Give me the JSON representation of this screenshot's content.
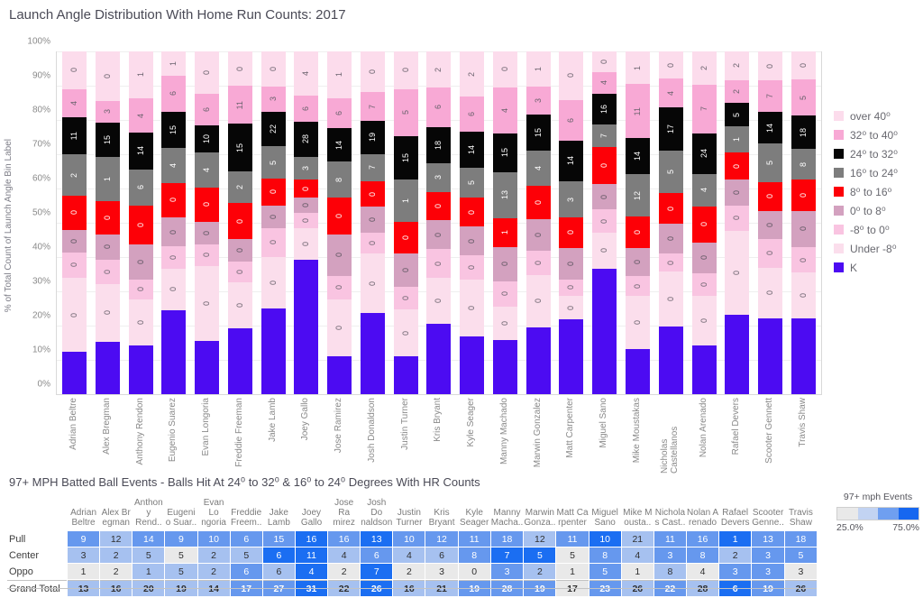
{
  "page_title": "Launch Angle Distribution With Home Run Counts:  2017",
  "chart_data": [
    {
      "type": "bar",
      "subtype": "stacked-100-percent",
      "title": "Launch Angle Distribution With Home Run Counts:  2017",
      "ylabel": "% of Total Count of Launch Angle Bin Label",
      "ylim": [
        0,
        100
      ],
      "ytick_step_percent": 10,
      "grid": true,
      "legend_position": "right",
      "segments_top_to_bottom": [
        "over 40⁰",
        "32⁰ to 40⁰",
        "24⁰ to 32⁰",
        "16⁰ to 24⁰",
        "8⁰ to 16⁰",
        "0⁰ to 8⁰",
        "-8⁰ to 0⁰",
        "Under -8⁰",
        "K"
      ],
      "segment_colors": [
        "#fcdcec",
        "#f8a9d5",
        "#060606",
        "#7d7d7d",
        "#fd0007",
        "#d3a1bf",
        "#f9c4e1",
        "#fbdeec",
        "#4c0bf2"
      ],
      "segment_label_text_colors": [
        "#6a626d",
        "#6a626d",
        "#ffffff",
        "#ffffff",
        "#ffffff",
        "#5d5560",
        "#6a626d",
        "#6a626d"
      ],
      "players": [
        {
          "name": "Adrian Beltre",
          "hr_counts_top_to_bottom": [
            0,
            4,
            11,
            2,
            0,
            0,
            0,
            0
          ],
          "segment_pcts_top_to_bottom": [
            11,
            7.8,
            9.5,
            12.2,
            9.6,
            6,
            7,
            22.9,
            14
          ]
        },
        {
          "name": "Alex Bregman",
          "hr_counts_top_to_bottom": [
            0,
            3,
            15,
            1,
            0,
            0,
            0,
            0
          ],
          "segment_pcts_top_to_bottom": [
            15,
            5.5,
            8.5,
            13,
            9.5,
            7,
            6.5,
            17.6,
            17.4
          ]
        },
        {
          "name": "Anthony Rendon",
          "hr_counts_top_to_bottom": [
            1,
            4,
            14,
            6,
            0,
            0,
            0,
            0
          ],
          "segment_pcts_top_to_bottom": [
            14,
            10,
            9,
            10.5,
            11.5,
            10,
            5,
            13.9,
            16.1
          ]
        },
        {
          "name": "Eugenio Suarez",
          "hr_counts_top_to_bottom": [
            1,
            6,
            15,
            4,
            0,
            0,
            0,
            0
          ],
          "segment_pcts_top_to_bottom": [
            6.5,
            10.5,
            9,
            10,
            10,
            8,
            6,
            12.1,
            27.9
          ]
        },
        {
          "name": "Evan Longoria",
          "hr_counts_top_to_bottom": [
            0,
            6,
            10,
            4,
            0,
            0,
            0,
            0
          ],
          "segment_pcts_top_to_bottom": [
            12.5,
            9,
            6,
            10,
            10,
            6,
            5.5,
            23.4,
            17.6
          ]
        },
        {
          "name": "Freddie Freeman",
          "hr_counts_top_to_bottom": [
            0,
            11,
            15,
            2,
            0,
            0,
            0,
            0
          ],
          "segment_pcts_top_to_bottom": [
            10,
            10,
            13,
            9,
            10.5,
            6,
            5.5,
            13.9,
            22.1
          ]
        },
        {
          "name": "Jake Lamb",
          "hr_counts_top_to_bottom": [
            0,
            3,
            22,
            5,
            0,
            0,
            0,
            0
          ],
          "segment_pcts_top_to_bottom": [
            10,
            7,
            8.5,
            9,
            7.5,
            6,
            8,
            15.6,
            28.4
          ]
        },
        {
          "name": "Joey Gallo",
          "hr_counts_top_to_bottom": [
            4,
            6,
            28,
            3,
            0,
            0,
            0,
            0
          ],
          "segment_pcts_top_to_bottom": [
            13,
            7.2,
            8.8,
            6,
            4.5,
            3.5,
            3.5,
            9,
            44.5
          ]
        },
        {
          "name": "Jose Ramirez",
          "hr_counts_top_to_bottom": [
            1,
            6,
            14,
            8,
            0,
            0,
            0,
            0
          ],
          "segment_pcts_top_to_bottom": [
            14,
            8.5,
            8,
            10.5,
            10.5,
            12.5,
            6,
            17.6,
            12.4
          ]
        },
        {
          "name": "Josh Donaldson",
          "hr_counts_top_to_bottom": [
            0,
            7,
            19,
            7,
            0,
            0,
            0,
            0
          ],
          "segment_pcts_top_to_bottom": [
            12,
            8,
            8,
            7.5,
            7,
            7,
            5.5,
            18.2,
            26.8
          ]
        },
        {
          "name": "Justin Turner",
          "hr_counts_top_to_bottom": [
            0,
            5,
            15,
            1,
            0,
            0,
            0,
            0
          ],
          "segment_pcts_top_to_bottom": [
            11,
            14,
            11.5,
            12.5,
            9,
            9.5,
            6,
            14.1,
            12.4
          ]
        },
        {
          "name": "Kris Bryant",
          "hr_counts_top_to_bottom": [
            2,
            6,
            18,
            3,
            0,
            0,
            0,
            0
          ],
          "segment_pcts_top_to_bottom": [
            10.5,
            11.5,
            9,
            8,
            8,
            8,
            8,
            13.6,
            23.4
          ]
        },
        {
          "name": "Kyle Seager",
          "hr_counts_top_to_bottom": [
            2,
            6,
            14,
            5,
            0,
            0,
            0,
            0
          ],
          "segment_pcts_top_to_bottom": [
            13.5,
            10,
            9,
            8.5,
            8,
            8,
            6.5,
            17.3,
            19.2
          ]
        },
        {
          "name": "Manny Machado",
          "hr_counts_top_to_bottom": [
            0,
            4,
            15,
            13,
            1,
            0,
            0,
            0
          ],
          "segment_pcts_top_to_bottom": [
            10.5,
            14,
            10,
            12.5,
            8,
            10,
            7,
            9.8,
            18.2
          ]
        },
        {
          "name": "Marwin Gonzalez",
          "hr_counts_top_to_bottom": [
            1,
            3,
            15,
            4,
            0,
            0,
            0,
            0
          ],
          "segment_pcts_top_to_bottom": [
            10,
            8,
            9,
            10,
            9.5,
            9,
            6.5,
            15.9,
            22.1
          ]
        },
        {
          "name": "Matt Carpenter",
          "hr_counts_top_to_bottom": [
            0,
            6,
            14,
            3,
            0,
            0,
            0,
            0
          ],
          "segment_pcts_top_to_bottom": [
            14.5,
            12,
            10.5,
            10.5,
            8.5,
            9,
            4,
            6.3,
            24.7
          ]
        },
        {
          "name": "Miguel Sano",
          "hr_counts_top_to_bottom": [
            0,
            4,
            16,
            7,
            0,
            0,
            0,
            0
          ],
          "segment_pcts_top_to_bottom": [
            5.3,
            5.8,
            7.1,
            6.1,
            10.5,
            7.1,
            6.1,
            10.4,
            41.6
          ]
        },
        {
          "name": "Mike Moustakas",
          "hr_counts_top_to_bottom": [
            1,
            11,
            14,
            12,
            0,
            0,
            0,
            0
          ],
          "segment_pcts_top_to_bottom": [
            9.6,
            15.6,
            9.2,
            11.4,
            9.2,
            7.9,
            5.3,
            16.3,
            15.5
          ]
        },
        {
          "name": "Nicholas Castellanos",
          "hr_counts_top_to_bottom": [
            0,
            4,
            17,
            5,
            0,
            0,
            0,
            0
          ],
          "segment_pcts_top_to_bottom": [
            7.5,
            8,
            11.5,
            12.5,
            8.5,
            8.5,
            4.5,
            16.5,
            22.5
          ]
        },
        {
          "name": "Nolan Arenado",
          "hr_counts_top_to_bottom": [
            2,
            7,
            24,
            4,
            0,
            0,
            0,
            0
          ],
          "segment_pcts_top_to_bottom": [
            9.6,
            14.5,
            10.5,
            9.2,
            10.4,
            8.8,
            6,
            15,
            16
          ]
        },
        {
          "name": "Rafael Devers",
          "hr_counts_top_to_bottom": [
            2,
            2,
            5,
            1,
            0,
            0,
            0,
            0
          ],
          "segment_pcts_top_to_bottom": [
            7.8,
            6.1,
            6.1,
            7,
            7.5,
            7,
            6.6,
            25.9,
            26
          ]
        },
        {
          "name": "Scooter Gennett",
          "hr_counts_top_to_bottom": [
            0,
            7,
            14,
            5,
            0,
            0,
            0,
            0
          ],
          "segment_pcts_top_to_bottom": [
            8.2,
            8.8,
            7.5,
            11.4,
            7.9,
            7.9,
            7.9,
            15.4,
            25
          ]
        },
        {
          "name": "Travis Shaw",
          "hr_counts_top_to_bottom": [
            0,
            5,
            18,
            8,
            0,
            0,
            0,
            0
          ],
          "segment_pcts_top_to_bottom": [
            7.8,
            10.5,
            7.9,
            8.8,
            8.8,
            10.5,
            7,
            13.7,
            25
          ]
        }
      ]
    },
    {
      "type": "table",
      "subtype": "highlight-table",
      "title": "97+ MPH Batted Ball Events - Balls Hit At 24⁰ to 32⁰ & 16⁰ to 24⁰ Degrees With HR Counts",
      "columns": [
        "Adrian\nBeltre",
        "Alex Br\negman",
        "Anthon\ny Rend..",
        "Eugeni\no Suar..",
        "Evan Lo\nngoria",
        "Freddie\nFreem..",
        "Jake\nLamb",
        "Joey\nGallo",
        "Jose Ra\nmirez",
        "Josh Do\nnaldson",
        "Justin\nTurner",
        "Kris\nBryant",
        "Kyle\nSeager",
        "Manny\nMacha..",
        "Marwin\nGonza..",
        "Matt Ca\nrpenter",
        "Miguel\nSano",
        "Mike M\nousta..",
        "Nichola\ns Cast..",
        "Nolan A\nrenado",
        "Rafael\nDevers",
        "Scooter\nGenne..",
        "Travis\nShaw"
      ],
      "rows": [
        {
          "label": "Pull",
          "values": [
            9,
            12,
            14,
            9,
            10,
            6,
            15,
            16,
            16,
            13,
            10,
            12,
            11,
            18,
            12,
            11,
            10,
            21,
            11,
            16,
            1,
            13,
            18
          ],
          "levels": [
            2,
            1,
            2,
            2,
            2,
            2,
            2,
            3,
            2,
            3,
            2,
            2,
            2,
            2,
            1,
            2,
            3,
            1,
            2,
            2,
            3,
            2,
            2
          ]
        },
        {
          "label": "Center",
          "values": [
            3,
            2,
            5,
            5,
            2,
            5,
            6,
            11,
            4,
            6,
            4,
            6,
            8,
            7,
            5,
            5,
            8,
            4,
            3,
            8,
            2,
            3,
            5
          ],
          "levels": [
            1,
            1,
            1,
            0,
            1,
            1,
            3,
            3,
            1,
            2,
            1,
            1,
            2,
            3,
            3,
            0,
            2,
            1,
            2,
            2,
            1,
            2,
            2
          ]
        },
        {
          "label": "Oppo",
          "values": [
            1,
            2,
            1,
            5,
            2,
            6,
            6,
            4,
            2,
            7,
            2,
            3,
            0,
            3,
            2,
            1,
            5,
            1,
            8,
            4,
            3,
            3,
            3
          ],
          "levels": [
            0,
            0,
            1,
            1,
            1,
            2,
            1,
            3,
            0,
            3,
            0,
            0,
            0,
            2,
            1,
            0,
            2,
            0,
            1,
            0,
            2,
            2,
            0
          ]
        },
        {
          "label": "Grand Total",
          "values": [
            13,
            16,
            20,
            19,
            14,
            17,
            27,
            31,
            22,
            26,
            16,
            21,
            19,
            28,
            19,
            17,
            23,
            26,
            22,
            28,
            6,
            19,
            26
          ],
          "levels": [
            1,
            1,
            1,
            1,
            1,
            2,
            2,
            3,
            1,
            3,
            1,
            1,
            2,
            2,
            2,
            0,
            2,
            1,
            2,
            1,
            3,
            2,
            1
          ]
        }
      ],
      "level_colors": [
        "#e9e9e9",
        "#a6c1f0",
        "#6698ee",
        "#1b6ef2"
      ],
      "cell_text_dark": "#2f2f2f",
      "cell_text_light": "#ffffff",
      "legend": {
        "title": "97+ mph Events",
        "min_label": "25.0%",
        "max_label": "75.0%",
        "colors": [
          "#e9e9e9",
          "#c2d3f2",
          "#6f9ff0",
          "#1667f0"
        ]
      }
    }
  ]
}
